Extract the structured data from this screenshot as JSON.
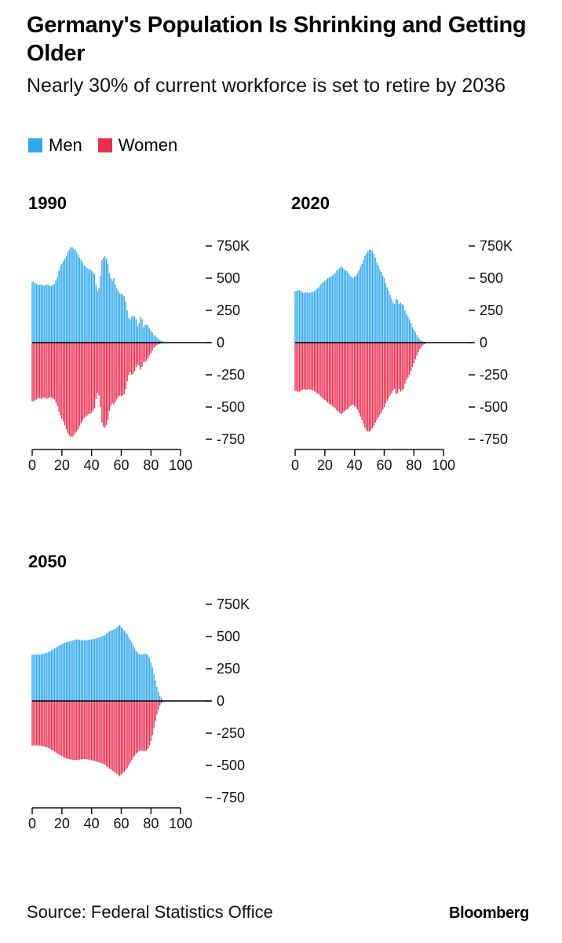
{
  "title": "Germany's Population Is Shrinking and Getting Older",
  "subtitle": "Nearly 30% of current workforce is set to retire by 2036",
  "legend": [
    {
      "label": "Men",
      "color": "#2fa8f0"
    },
    {
      "label": "Women",
      "color": "#ec2d4e"
    }
  ],
  "source": "Source: Federal Statistics Office",
  "brand": "Bloomberg",
  "colors": {
    "men": "#2fa8f0",
    "women": "#ec2d4e",
    "axis": "#000000"
  },
  "chart_data": [
    {
      "type": "bar",
      "title": "1990",
      "x_ticks": [
        "0",
        "20",
        "40",
        "60",
        "80",
        "100"
      ],
      "y_ticks": [
        "750K",
        "500",
        "250",
        "0",
        "-250",
        "-500",
        "-750"
      ],
      "y_tick_values": [
        750,
        500,
        250,
        0,
        -250,
        -500,
        -750
      ],
      "ylim": [
        -750,
        750
      ],
      "xlim": [
        0,
        120
      ],
      "x": [
        0,
        1,
        2,
        3,
        4,
        5,
        6,
        7,
        8,
        9,
        10,
        11,
        12,
        13,
        14,
        15,
        16,
        17,
        18,
        19,
        20,
        21,
        22,
        23,
        24,
        25,
        26,
        27,
        28,
        29,
        30,
        31,
        32,
        33,
        34,
        35,
        36,
        37,
        38,
        39,
        40,
        41,
        42,
        43,
        44,
        45,
        46,
        47,
        48,
        49,
        50,
        51,
        52,
        53,
        54,
        55,
        56,
        57,
        58,
        59,
        60,
        61,
        62,
        63,
        64,
        65,
        66,
        67,
        68,
        69,
        70,
        71,
        72,
        73,
        74,
        75,
        76,
        77,
        78,
        79,
        80,
        81,
        82,
        83,
        84,
        85,
        86,
        87,
        88,
        89,
        90,
        91,
        92,
        93,
        94,
        95,
        96,
        97,
        98,
        99,
        100
      ],
      "series": [
        {
          "name": "Men",
          "values": [
            470,
            470,
            460,
            455,
            445,
            445,
            450,
            445,
            440,
            445,
            450,
            445,
            440,
            440,
            450,
            455,
            480,
            510,
            560,
            590,
            610,
            630,
            650,
            670,
            700,
            720,
            740,
            740,
            730,
            720,
            700,
            680,
            660,
            640,
            620,
            600,
            590,
            580,
            570,
            570,
            560,
            545,
            530,
            450,
            400,
            420,
            520,
            640,
            660,
            670,
            650,
            610,
            540,
            500,
            480,
            500,
            450,
            420,
            400,
            380,
            380,
            370,
            360,
            320,
            250,
            190,
            180,
            200,
            210,
            200,
            180,
            130,
            150,
            200,
            180,
            120,
            140,
            140,
            130,
            110,
            90,
            80,
            60,
            50,
            40,
            28,
            20,
            14,
            10,
            6,
            4,
            3,
            2,
            1,
            1,
            1,
            0,
            0,
            0,
            0,
            0
          ]
        },
        {
          "name": "Women",
          "values": [
            -455,
            -455,
            -445,
            -440,
            -430,
            -430,
            -435,
            -430,
            -425,
            -430,
            -435,
            -430,
            -425,
            -425,
            -435,
            -440,
            -465,
            -490,
            -535,
            -565,
            -590,
            -610,
            -640,
            -670,
            -700,
            -720,
            -730,
            -730,
            -720,
            -700,
            -690,
            -670,
            -645,
            -625,
            -605,
            -585,
            -575,
            -565,
            -555,
            -550,
            -545,
            -530,
            -510,
            -440,
            -390,
            -410,
            -500,
            -620,
            -650,
            -660,
            -640,
            -600,
            -530,
            -490,
            -470,
            -480,
            -460,
            -440,
            -420,
            -410,
            -415,
            -410,
            -400,
            -360,
            -300,
            -250,
            -230,
            -250,
            -240,
            -220,
            -190,
            -170,
            -180,
            -210,
            -190,
            -150,
            -150,
            -140,
            -120,
            -100,
            -80,
            -60,
            -40,
            -30,
            -20,
            -14,
            -10,
            -6,
            -4,
            -3,
            -2,
            -1,
            -1,
            -1,
            0,
            0,
            0,
            0,
            0,
            0,
            0
          ]
        }
      ]
    },
    {
      "type": "bar",
      "title": "2020",
      "x_ticks": [
        "0",
        "20",
        "40",
        "60",
        "80",
        "100"
      ],
      "y_ticks": [
        "750K",
        "500",
        "250",
        "0",
        "-250",
        "-500",
        "-750"
      ],
      "y_tick_values": [
        750,
        500,
        250,
        0,
        -250,
        -500,
        -750
      ],
      "ylim": [
        -750,
        750
      ],
      "xlim": [
        0,
        120
      ],
      "x": [
        0,
        1,
        2,
        3,
        4,
        5,
        6,
        7,
        8,
        9,
        10,
        11,
        12,
        13,
        14,
        15,
        16,
        17,
        18,
        19,
        20,
        21,
        22,
        23,
        24,
        25,
        26,
        27,
        28,
        29,
        30,
        31,
        32,
        33,
        34,
        35,
        36,
        37,
        38,
        39,
        40,
        41,
        42,
        43,
        44,
        45,
        46,
        47,
        48,
        49,
        50,
        51,
        52,
        53,
        54,
        55,
        56,
        57,
        58,
        59,
        60,
        61,
        62,
        63,
        64,
        65,
        66,
        67,
        68,
        69,
        70,
        71,
        72,
        73,
        74,
        75,
        76,
        77,
        78,
        79,
        80,
        81,
        82,
        83,
        84,
        85,
        86,
        87,
        88,
        89,
        90,
        91,
        92,
        93,
        94,
        95,
        96,
        97,
        98,
        99,
        100
      ],
      "series": [
        {
          "name": "Men",
          "values": [
            400,
            400,
            410,
            405,
            400,
            390,
            385,
            390,
            390,
            385,
            390,
            390,
            395,
            400,
            410,
            420,
            430,
            450,
            460,
            470,
            480,
            490,
            500,
            505,
            510,
            520,
            530,
            540,
            560,
            570,
            580,
            590,
            580,
            570,
            560,
            555,
            540,
            520,
            510,
            500,
            510,
            520,
            540,
            560,
            590,
            610,
            640,
            670,
            690,
            710,
            720,
            720,
            710,
            690,
            660,
            620,
            600,
            570,
            550,
            520,
            500,
            460,
            430,
            400,
            370,
            340,
            310,
            300,
            340,
            330,
            300,
            310,
            300,
            290,
            250,
            220,
            200,
            180,
            150,
            120,
            100,
            80,
            60,
            40,
            25,
            15,
            10,
            6,
            4,
            2,
            1,
            1,
            1,
            0,
            0,
            0,
            0,
            0,
            0,
            0,
            0
          ]
        },
        {
          "name": "Women",
          "values": [
            -375,
            -375,
            -385,
            -380,
            -375,
            -365,
            -360,
            -365,
            -365,
            -360,
            -365,
            -365,
            -370,
            -375,
            -385,
            -395,
            -400,
            -415,
            -425,
            -435,
            -445,
            -455,
            -465,
            -475,
            -480,
            -490,
            -500,
            -510,
            -525,
            -535,
            -545,
            -555,
            -545,
            -535,
            -525,
            -520,
            -510,
            -495,
            -485,
            -480,
            -490,
            -500,
            -520,
            -545,
            -575,
            -600,
            -630,
            -660,
            -680,
            -690,
            -690,
            -680,
            -665,
            -645,
            -620,
            -600,
            -580,
            -560,
            -545,
            -520,
            -500,
            -470,
            -450,
            -430,
            -410,
            -390,
            -370,
            -360,
            -400,
            -390,
            -360,
            -380,
            -370,
            -360,
            -320,
            -290,
            -270,
            -250,
            -220,
            -190,
            -160,
            -130,
            -100,
            -75,
            -50,
            -35,
            -20,
            -12,
            -6,
            -3,
            -2,
            -1,
            -1,
            0,
            0,
            0,
            0,
            0,
            0,
            0,
            0
          ]
        }
      ]
    },
    {
      "type": "bar",
      "title": "2050",
      "x_ticks": [
        "0",
        "20",
        "40",
        "60",
        "80",
        "100"
      ],
      "y_ticks": [
        "750K",
        "500",
        "250",
        "0",
        "-250",
        "-500",
        "-750"
      ],
      "y_tick_values": [
        750,
        500,
        250,
        0,
        -250,
        -500,
        -750
      ],
      "ylim": [
        -750,
        750
      ],
      "xlim": [
        0,
        120
      ],
      "x": [
        0,
        1,
        2,
        3,
        4,
        5,
        6,
        7,
        8,
        9,
        10,
        11,
        12,
        13,
        14,
        15,
        16,
        17,
        18,
        19,
        20,
        21,
        22,
        23,
        24,
        25,
        26,
        27,
        28,
        29,
        30,
        31,
        32,
        33,
        34,
        35,
        36,
        37,
        38,
        39,
        40,
        41,
        42,
        43,
        44,
        45,
        46,
        47,
        48,
        49,
        50,
        51,
        52,
        53,
        54,
        55,
        56,
        57,
        58,
        59,
        60,
        61,
        62,
        63,
        64,
        65,
        66,
        67,
        68,
        69,
        70,
        71,
        72,
        73,
        74,
        75,
        76,
        77,
        78,
        79,
        80,
        81,
        82,
        83,
        84,
        85,
        86,
        87,
        88,
        89,
        90,
        91,
        92,
        93,
        94,
        95,
        96,
        97,
        98,
        99,
        100
      ],
      "series": [
        {
          "name": "Men",
          "values": [
            360,
            360,
            360,
            360,
            360,
            360,
            362,
            365,
            368,
            372,
            376,
            381,
            387,
            393,
            400,
            407,
            414,
            421,
            428,
            435,
            441,
            447,
            452,
            456,
            459,
            462,
            465,
            468,
            472,
            475,
            478,
            476,
            474,
            472,
            470,
            470,
            471,
            472,
            474,
            476,
            478,
            480,
            482,
            485,
            488,
            492,
            496,
            500,
            505,
            510,
            520,
            530,
            540,
            545,
            550,
            555,
            560,
            570,
            580,
            590,
            570,
            560,
            545,
            530,
            515,
            495,
            475,
            455,
            430,
            410,
            390,
            375,
            365,
            360,
            360,
            365,
            368,
            365,
            355,
            335,
            300,
            260,
            210,
            160,
            110,
            70,
            40,
            22,
            10,
            5,
            2,
            1,
            0,
            0,
            0,
            0,
            0,
            0,
            0,
            0,
            0
          ]
        },
        {
          "name": "Women",
          "values": [
            -345,
            -345,
            -345,
            -345,
            -345,
            -346,
            -348,
            -350,
            -353,
            -357,
            -361,
            -366,
            -372,
            -378,
            -385,
            -392,
            -400,
            -408,
            -415,
            -422,
            -429,
            -435,
            -441,
            -446,
            -450,
            -453,
            -455,
            -457,
            -458,
            -459,
            -459,
            -457,
            -455,
            -453,
            -451,
            -450,
            -451,
            -453,
            -455,
            -457,
            -460,
            -462,
            -465,
            -468,
            -472,
            -476,
            -480,
            -485,
            -490,
            -495,
            -505,
            -515,
            -525,
            -530,
            -540,
            -548,
            -555,
            -565,
            -575,
            -585,
            -570,
            -560,
            -548,
            -535,
            -520,
            -500,
            -480,
            -460,
            -440,
            -425,
            -410,
            -400,
            -390,
            -385,
            -385,
            -388,
            -390,
            -385,
            -370,
            -345,
            -310,
            -265,
            -210,
            -155,
            -105,
            -65,
            -35,
            -18,
            -8,
            -3,
            -1,
            0,
            0,
            0,
            0,
            0,
            0,
            0,
            0,
            0,
            0
          ]
        }
      ]
    }
  ]
}
